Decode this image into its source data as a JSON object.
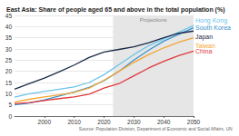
{
  "chart_data": {
    "type": "line",
    "title": "East Asia: Share of people aged 65 and above in the total population (%)",
    "source": "Source: Population Division, Department of Economic and Social Affairs, UN",
    "x": [
      1990,
      1995,
      2000,
      2005,
      2010,
      2015,
      2020,
      2025,
      2030,
      2035,
      2040,
      2045,
      2050
    ],
    "series": [
      {
        "name": "Hong Kong",
        "color": "#6cc3ea",
        "values": [
          8.5,
          10.0,
          11.0,
          12.0,
          13.0,
          15.0,
          18.5,
          23.0,
          27.5,
          31.5,
          34.5,
          37.5,
          40.5
        ]
      },
      {
        "name": "South Korea",
        "color": "#3a94cf",
        "values": [
          5.0,
          5.8,
          7.2,
          9.0,
          10.8,
          12.8,
          15.8,
          20.0,
          25.0,
          29.5,
          33.5,
          36.5,
          39.5
        ]
      },
      {
        "name": "Japan",
        "color": "#1b2a48",
        "values": [
          12.0,
          14.5,
          17.0,
          19.8,
          22.8,
          26.2,
          28.6,
          29.8,
          31.0,
          32.8,
          35.0,
          37.0,
          38.0
        ]
      },
      {
        "name": "Taiwan",
        "color": "#f3a533",
        "values": [
          6.2,
          7.5,
          8.6,
          9.5,
          10.6,
          12.5,
          16.0,
          20.0,
          24.0,
          27.5,
          30.5,
          33.0,
          35.0
        ]
      },
      {
        "name": "China",
        "color": "#e0383a",
        "values": [
          5.5,
          6.0,
          6.9,
          7.8,
          8.6,
          9.8,
          12.5,
          14.5,
          18.0,
          21.5,
          24.5,
          27.0,
          29.0
        ]
      }
    ],
    "annotations": [
      {
        "text": "Projections",
        "x": [
          2023,
          2050
        ]
      }
    ],
    "xlim": [
      1990,
      2050
    ],
    "xticks": [
      2000,
      2010,
      2020,
      2030,
      2040,
      2050
    ],
    "ylim": [
      0,
      45
    ],
    "yticks": [
      0,
      5,
      10,
      15,
      20,
      25,
      30,
      35,
      40,
      45
    ],
    "grid": true
  }
}
